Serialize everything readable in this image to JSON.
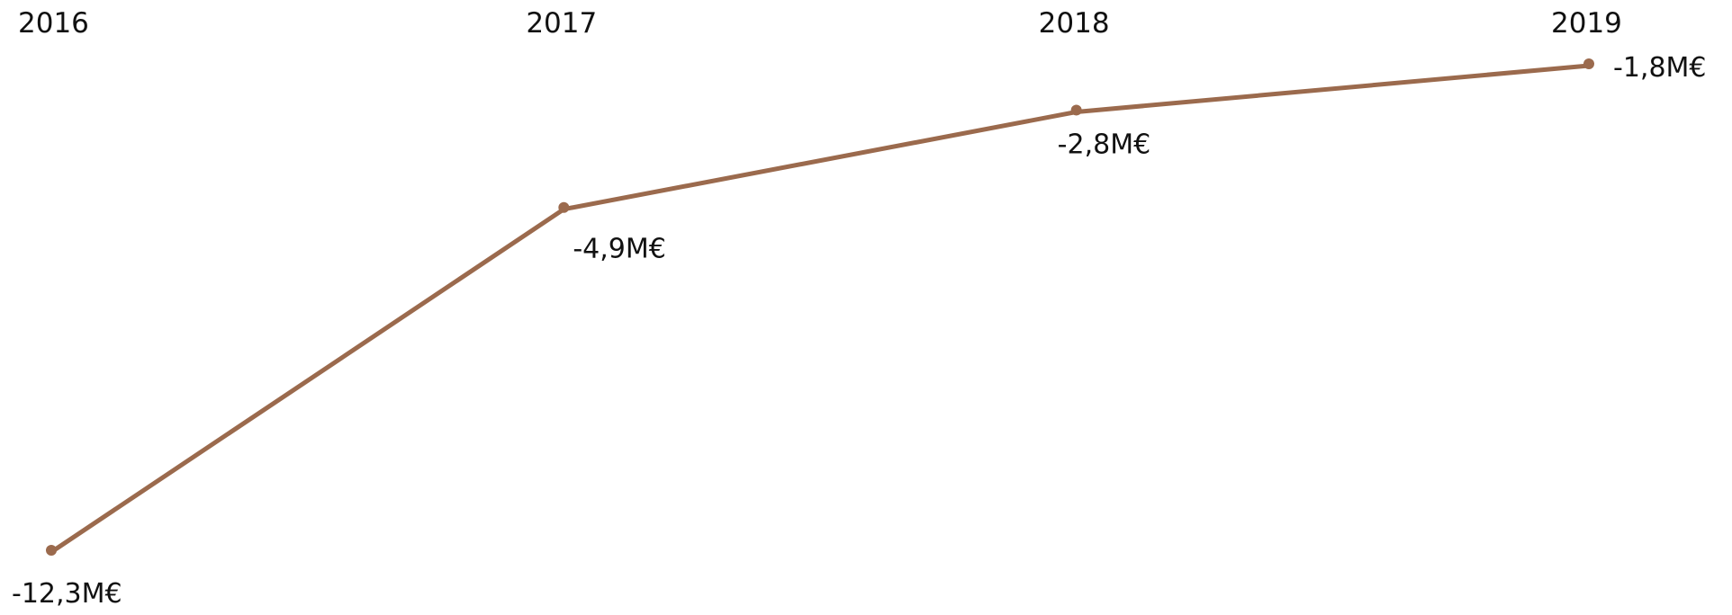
{
  "chart_data": {
    "type": "line",
    "categories": [
      "2016",
      "2017",
      "2018",
      "2019"
    ],
    "values": [
      -12.3,
      -4.9,
      -2.8,
      -1.8
    ],
    "data_labels": [
      "-12,3M€",
      "-4,9M€",
      "-2,8M€",
      "-1,8M€"
    ],
    "title": "",
    "xlabel": "",
    "ylabel": "",
    "ylim": [
      -12.3,
      -1.8
    ],
    "grid": false,
    "legend": "none",
    "colors": {
      "line": "#9b6a4d",
      "text": "#111111"
    }
  }
}
